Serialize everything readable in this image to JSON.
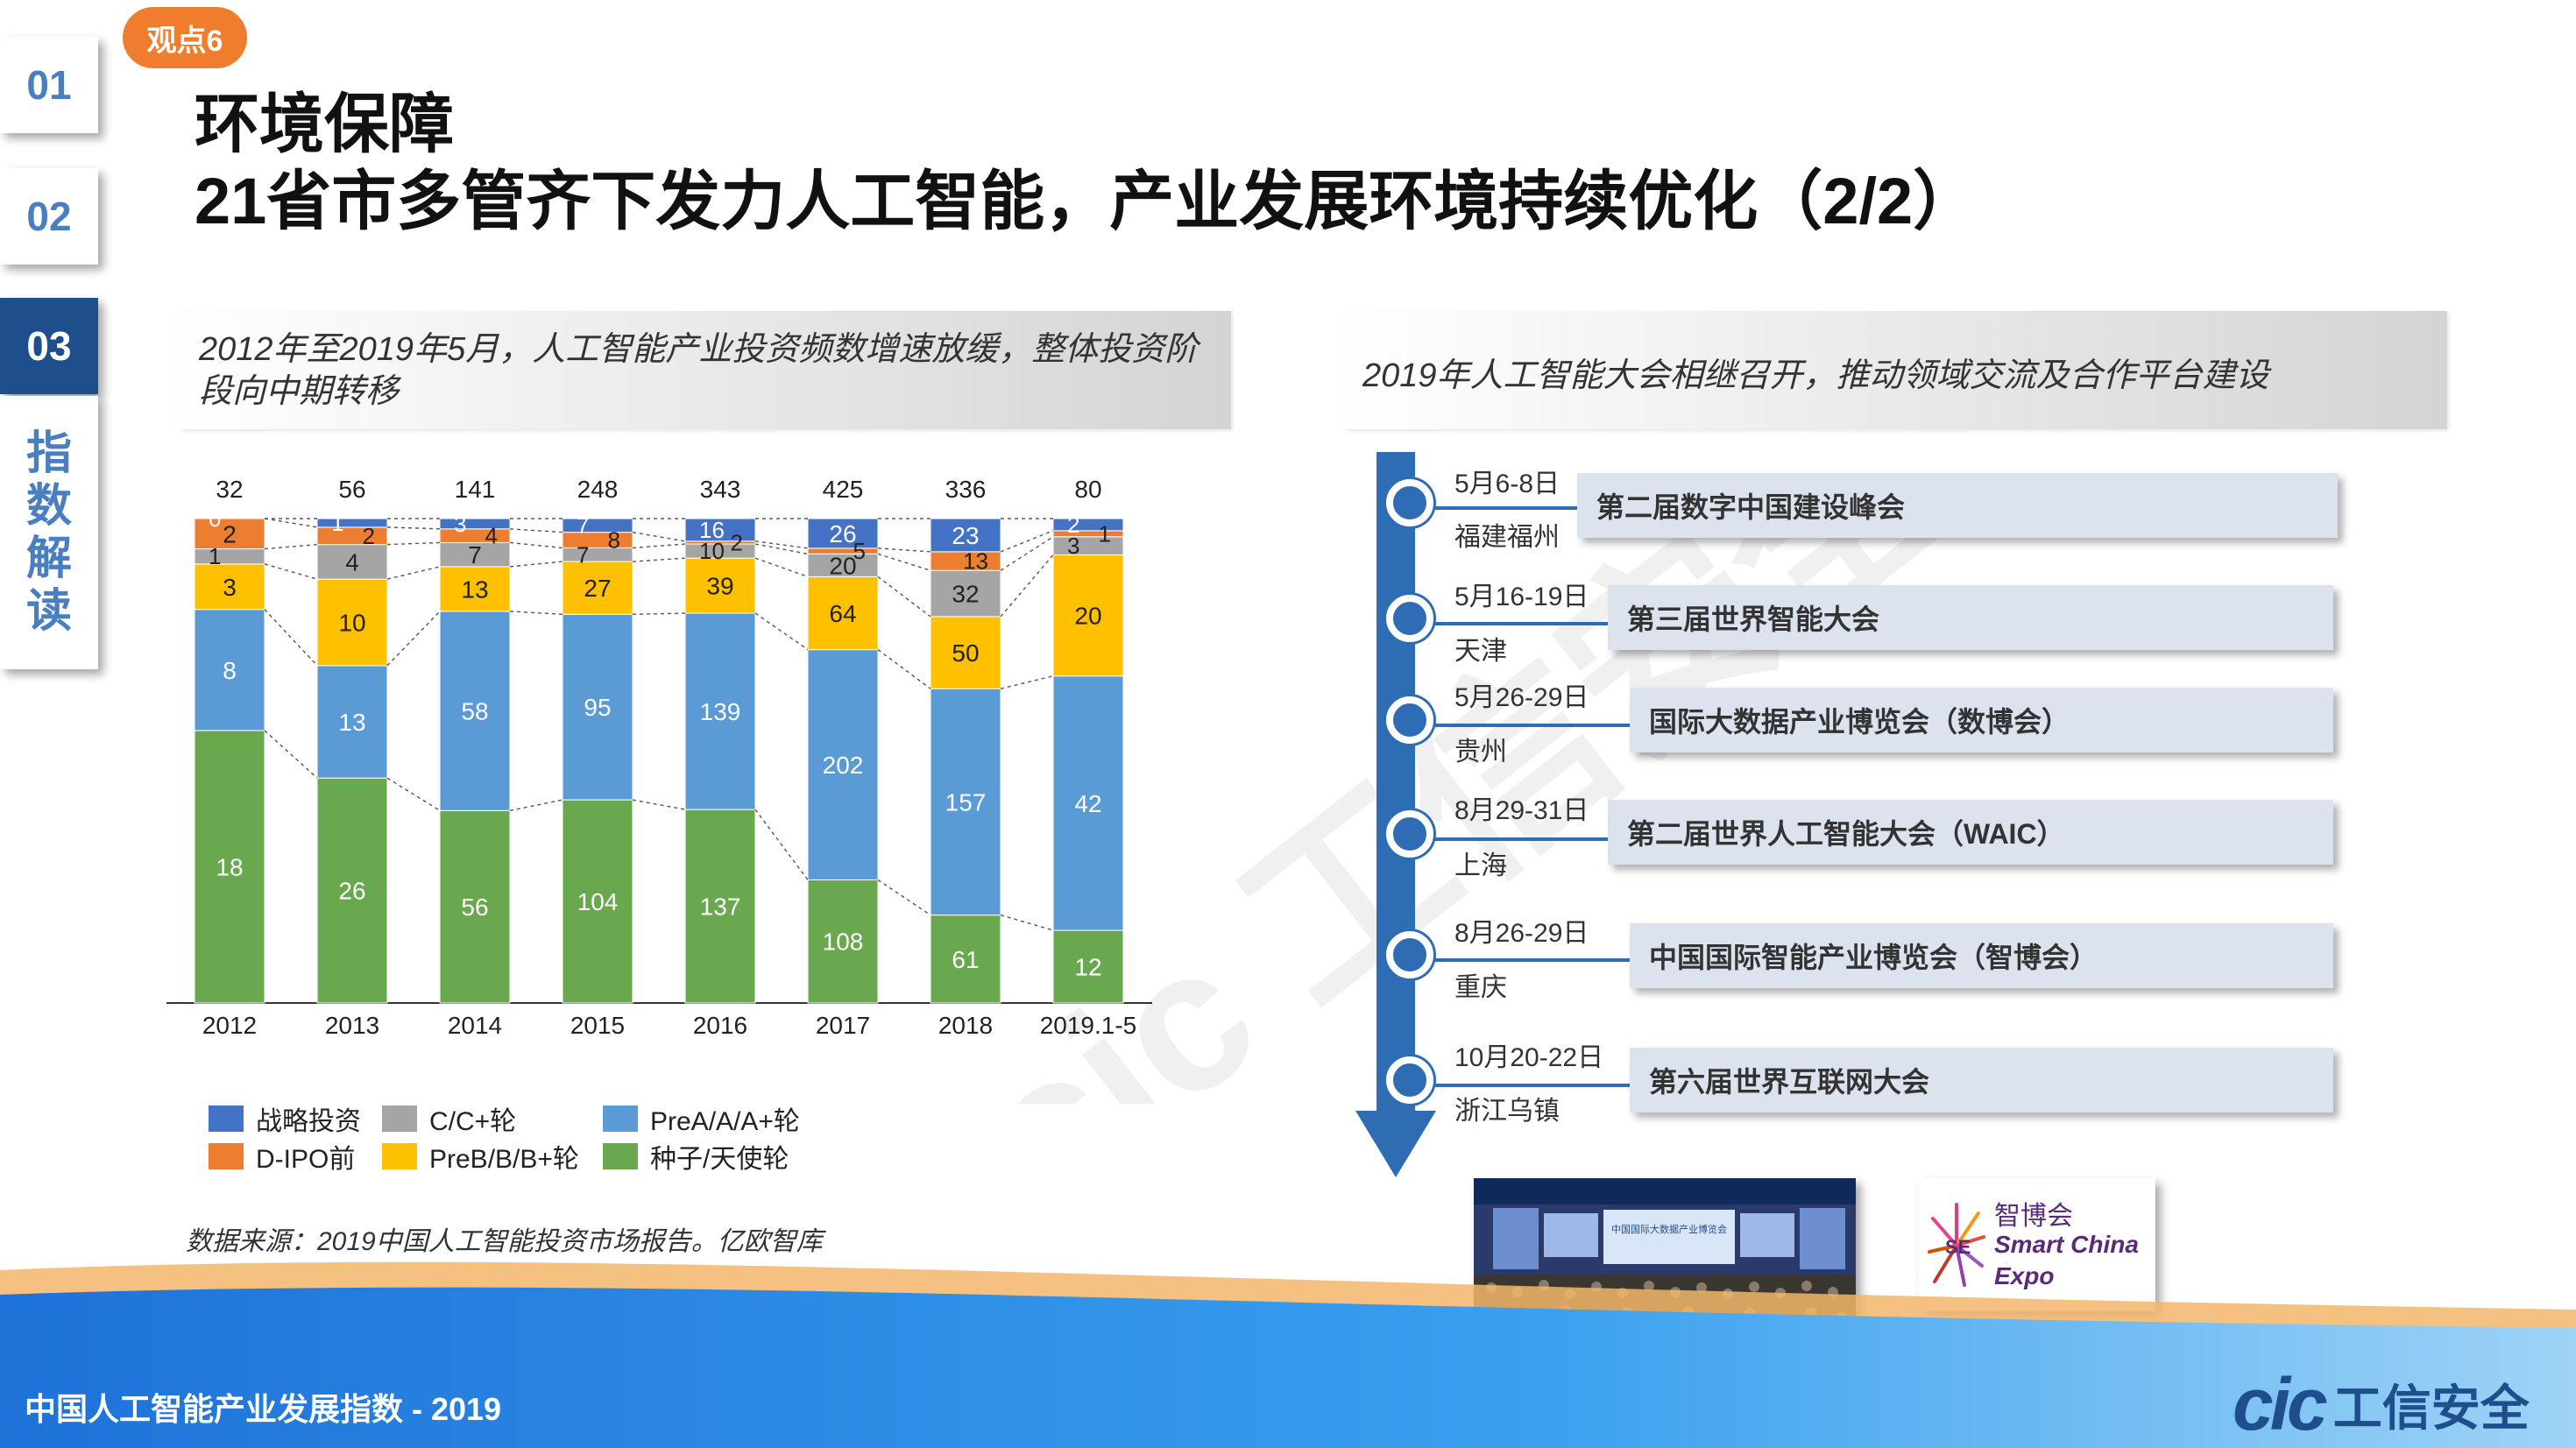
{
  "nav": {
    "tabs": [
      "01",
      "02",
      "03"
    ],
    "active_index": 2,
    "section_label": [
      "指",
      "数",
      "解",
      "读"
    ]
  },
  "tag": "观点6",
  "title": {
    "line1": "环境保障",
    "line2": "21省市多管齐下发力人工智能，产业发展环境持续优化（2/2）"
  },
  "left_panel": {
    "header": "2012年至2019年5月，人工智能产业投资频数增速放缓，整体投资阶段向中期转移"
  },
  "right_panel": {
    "header": "2019年人工智能大会相继召开，推动领域交流及合作平台建设"
  },
  "chart_data": {
    "type": "bar",
    "stacked": true,
    "categories": [
      "2012",
      "2013",
      "2014",
      "2015",
      "2016",
      "2017",
      "2018",
      "2019.1-5"
    ],
    "totals": [
      32,
      56,
      141,
      248,
      343,
      425,
      336,
      80
    ],
    "series": [
      {
        "name": "种子/天使轮",
        "color": "#6aa84f",
        "values": [
          18,
          26,
          56,
          104,
          137,
          108,
          61,
          12
        ]
      },
      {
        "name": "PreA/A/A+轮",
        "color": "#5b9bd5",
        "values": [
          8,
          13,
          58,
          95,
          139,
          202,
          157,
          42
        ]
      },
      {
        "name": "PreB/B/B+轮",
        "color": "#ffc000",
        "values": [
          3,
          10,
          13,
          27,
          39,
          64,
          50,
          20
        ]
      },
      {
        "name": "C/C+轮",
        "color": "#a5a5a5",
        "values": [
          1,
          4,
          7,
          7,
          10,
          20,
          32,
          3
        ]
      },
      {
        "name": "D-IPO前",
        "color": "#ed7d31",
        "values": [
          2,
          2,
          4,
          8,
          2,
          5,
          13,
          1
        ]
      },
      {
        "name": "战略投资",
        "color": "#4472c4",
        "values": [
          0,
          1,
          3,
          7,
          16,
          26,
          23,
          2
        ]
      }
    ],
    "legend": {
      "rows": [
        [
          "战略投资",
          "C/C+轮",
          "PreA/A/A+轮"
        ],
        [
          "D-IPO前",
          "PreB/B/B+轮",
          "种子/天使轮"
        ]
      ],
      "colors": {
        "战略投资": "#4472c4",
        "C/C+轮": "#a5a5a5",
        "PreA/A/A+轮": "#5b9bd5",
        "D-IPO前": "#ed7d31",
        "PreB/B/B+轮": "#ffc000",
        "种子/天使轮": "#6aa84f"
      }
    },
    "xlabel": "",
    "ylabel": "",
    "grid": false
  },
  "source": "数据来源：2019中国人工智能投资市场报告。亿欧智库",
  "timeline": [
    {
      "date": "5月6-8日",
      "place": "福建福州",
      "event": "第二届数字中国建设峰会"
    },
    {
      "date": "5月16-19日",
      "place": "天津",
      "event": "第三届世界智能大会"
    },
    {
      "date": "5月26-29日",
      "place": "贵州",
      "event": "国际大数据产业博览会（数博会）"
    },
    {
      "date": "8月29-31日",
      "place": "上海",
      "event": "第二届世界人工智能大会（WAIC）"
    },
    {
      "date": "8月26-29日",
      "place": "重庆",
      "event": "中国国际智能产业博览会（智博会）"
    },
    {
      "date": "10月20-22日",
      "place": "浙江乌镇",
      "event": "第六届世界互联网大会"
    }
  ],
  "photo": {
    "banner_title": "中国国际大数据产业博览会"
  },
  "expo_logo": {
    "line1": "智博会",
    "line2": "Smart China",
    "line3": "Expo"
  },
  "watermark": "cic 工信安全",
  "footer": {
    "title": "中国人工智能产业发展指数 - 2019",
    "brand_cic": "cic",
    "brand_cn": "工信安全"
  },
  "colors": {
    "accent_blue": "#2e6db4",
    "nav_active": "#1f4e8c",
    "tag_orange": "#ef7d2d"
  }
}
